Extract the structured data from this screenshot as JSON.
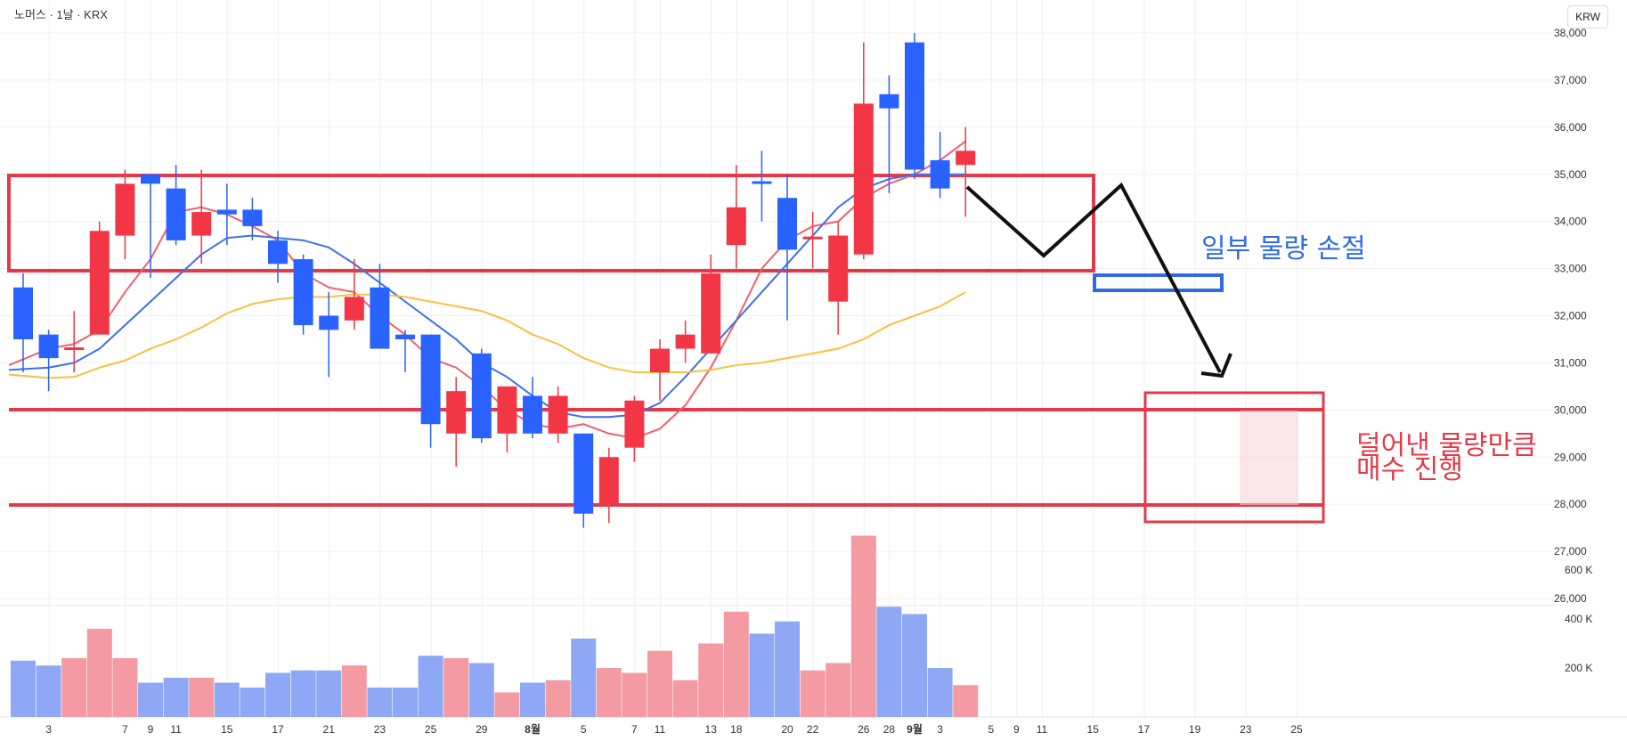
{
  "header": {
    "title": "노머스 · 1날 · KRX",
    "currency": "KRW"
  },
  "colors": {
    "up": "#f23645",
    "down": "#2962ff",
    "ma5": "#f0616d",
    "ma10": "#3f70e8",
    "ma20": "#f5c242",
    "volume_up": "#f49aa3",
    "volume_down": "#8fa8f5",
    "annotation_red": "#e23a4a",
    "annotation_blue": "#2f6be8"
  },
  "annotations": {
    "blue_text": "일부 물량 손절",
    "red_text_line1": "덜어낸 물량만큼",
    "red_text_line2": "매수 진행"
  },
  "chart_data": [
    {
      "type": "candlestick",
      "title": "",
      "price_axis": {
        "ticks": [
          26000,
          27000,
          28000,
          29000,
          30000,
          31000,
          32000,
          33000,
          34000,
          35000,
          36000,
          37000,
          38000
        ],
        "labels": [
          "26,000",
          "27,000",
          "28,000",
          "29,000",
          "30,000",
          "31,000",
          "32,000",
          "33,000",
          "34,000",
          "35,000",
          "36,000",
          "37,000",
          "38,000"
        ],
        "range": [
          26000,
          38000
        ]
      },
      "x_axis": {
        "tick_labels": [
          "3",
          "7",
          "9",
          "11",
          "15",
          "17",
          "21",
          "23",
          "25",
          "29",
          "8월",
          "5",
          "7",
          "11",
          "13",
          "18",
          "20",
          "22",
          "26",
          "28",
          "9월",
          "3",
          "5",
          "9",
          "11",
          "15",
          "17",
          "19",
          "23",
          "25"
        ],
        "bold_labels": [
          "8월",
          "9월"
        ]
      },
      "candles": [
        {
          "o": 32600,
          "h": 32900,
          "l": 30800,
          "c": 31500
        },
        {
          "o": 31600,
          "h": 31700,
          "l": 30400,
          "c": 31100
        },
        {
          "o": 31300,
          "h": 32100,
          "l": 30800,
          "c": 31300
        },
        {
          "o": 31600,
          "h": 34000,
          "l": 31600,
          "c": 33800
        },
        {
          "o": 33700,
          "h": 35100,
          "l": 33200,
          "c": 34800
        },
        {
          "o": 35000,
          "h": 35000,
          "l": 32800,
          "c": 34800
        },
        {
          "o": 34700,
          "h": 35200,
          "l": 33500,
          "c": 33600
        },
        {
          "o": 33700,
          "h": 35100,
          "l": 33100,
          "c": 34200
        },
        {
          "o": 34250,
          "h": 34800,
          "l": 33500,
          "c": 34150
        },
        {
          "o": 34250,
          "h": 34500,
          "l": 33600,
          "c": 33900
        },
        {
          "o": 33600,
          "h": 33800,
          "l": 32700,
          "c": 33100
        },
        {
          "o": 33200,
          "h": 33300,
          "l": 31600,
          "c": 31800
        },
        {
          "o": 32000,
          "h": 32500,
          "l": 30700,
          "c": 31700
        },
        {
          "o": 31900,
          "h": 33200,
          "l": 31700,
          "c": 32400
        },
        {
          "o": 32600,
          "h": 33100,
          "l": 31300,
          "c": 31300
        },
        {
          "o": 31600,
          "h": 31700,
          "l": 30800,
          "c": 31500
        },
        {
          "o": 31600,
          "h": 31600,
          "l": 29200,
          "c": 29700
        },
        {
          "o": 29500,
          "h": 30700,
          "l": 28800,
          "c": 30400
        },
        {
          "o": 31200,
          "h": 31300,
          "l": 29300,
          "c": 29400
        },
        {
          "o": 29500,
          "h": 30500,
          "l": 29100,
          "c": 30500
        },
        {
          "o": 30300,
          "h": 30700,
          "l": 29400,
          "c": 29500
        },
        {
          "o": 29500,
          "h": 30500,
          "l": 29300,
          "c": 30300
        },
        {
          "o": 29500,
          "h": 29500,
          "l": 27500,
          "c": 27800
        },
        {
          "o": 28000,
          "h": 29200,
          "l": 27600,
          "c": 29000
        },
        {
          "o": 29200,
          "h": 30300,
          "l": 28900,
          "c": 30200
        },
        {
          "o": 30800,
          "h": 31500,
          "l": 30200,
          "c": 31300
        },
        {
          "o": 31300,
          "h": 31900,
          "l": 31000,
          "c": 31600
        },
        {
          "o": 31200,
          "h": 33300,
          "l": 31200,
          "c": 32900
        },
        {
          "o": 33500,
          "h": 35200,
          "l": 33000,
          "c": 34300
        },
        {
          "o": 34850,
          "h": 35500,
          "l": 34000,
          "c": 34800
        },
        {
          "o": 34500,
          "h": 35000,
          "l": 31900,
          "c": 33400
        },
        {
          "o": 33650,
          "h": 34200,
          "l": 33000,
          "c": 33650
        },
        {
          "o": 32300,
          "h": 34000,
          "l": 31600,
          "c": 33700
        },
        {
          "o": 33300,
          "h": 37800,
          "l": 33200,
          "c": 36500
        },
        {
          "o": 36700,
          "h": 37100,
          "l": 34600,
          "c": 36400
        },
        {
          "o": 37800,
          "h": 38000,
          "l": 34900,
          "c": 35100
        },
        {
          "o": 35300,
          "h": 35900,
          "l": 34500,
          "c": 34700
        },
        {
          "o": 35200,
          "h": 36000,
          "l": 34100,
          "c": 35500
        }
      ],
      "moving_averages": [
        {
          "name": "MA5",
          "values": [
            30950,
            31300,
            31400,
            31700,
            32500,
            33200,
            34200,
            34300,
            34150,
            33900,
            33600,
            32900,
            32600,
            32500,
            32000,
            31600,
            31100,
            30900,
            30500,
            30000,
            29700,
            29600,
            29700,
            29500,
            29400,
            29600,
            30100,
            30900,
            31900,
            33000,
            33600,
            33900,
            34000,
            34500,
            34800,
            35000,
            35300,
            35700
          ]
        },
        {
          "name": "MA10",
          "values": [
            30850,
            30900,
            31000,
            31300,
            31800,
            32300,
            32800,
            33300,
            33650,
            33700,
            33650,
            33600,
            33450,
            33100,
            32700,
            32300,
            31900,
            31500,
            31000,
            30700,
            30300,
            29950,
            29850,
            29850,
            29900,
            30150,
            30700,
            31300,
            31900,
            32500,
            33100,
            33700,
            34300,
            34700,
            34900,
            35000,
            35000,
            35000
          ]
        },
        {
          "name": "MA20",
          "values": [
            30750,
            30680,
            30700,
            30900,
            31050,
            31300,
            31500,
            31750,
            32050,
            32250,
            32350,
            32400,
            32400,
            32450,
            32450,
            32400,
            32300,
            32200,
            32100,
            31900,
            31600,
            31400,
            31100,
            30900,
            30800,
            30800,
            30800,
            30850,
            30950,
            31000,
            31100,
            31200,
            31300,
            31500,
            31800,
            32000,
            32200,
            32500
          ]
        }
      ],
      "volume_axis": {
        "labels": [
          "200 K",
          "400 K",
          "600 K"
        ],
        "ticks": [
          200000,
          400000,
          600000
        ]
      },
      "volume": [
        230000,
        210000,
        240000,
        360000,
        240000,
        140000,
        160000,
        160000,
        140000,
        120000,
        180000,
        190000,
        190000,
        210000,
        120000,
        120000,
        250000,
        240000,
        220000,
        100000,
        140000,
        150000,
        320000,
        200000,
        180000,
        270000,
        150000,
        300000,
        430000,
        340000,
        390000,
        190000,
        220000,
        740000,
        450000,
        420000,
        200000,
        130000
      ]
    }
  ]
}
